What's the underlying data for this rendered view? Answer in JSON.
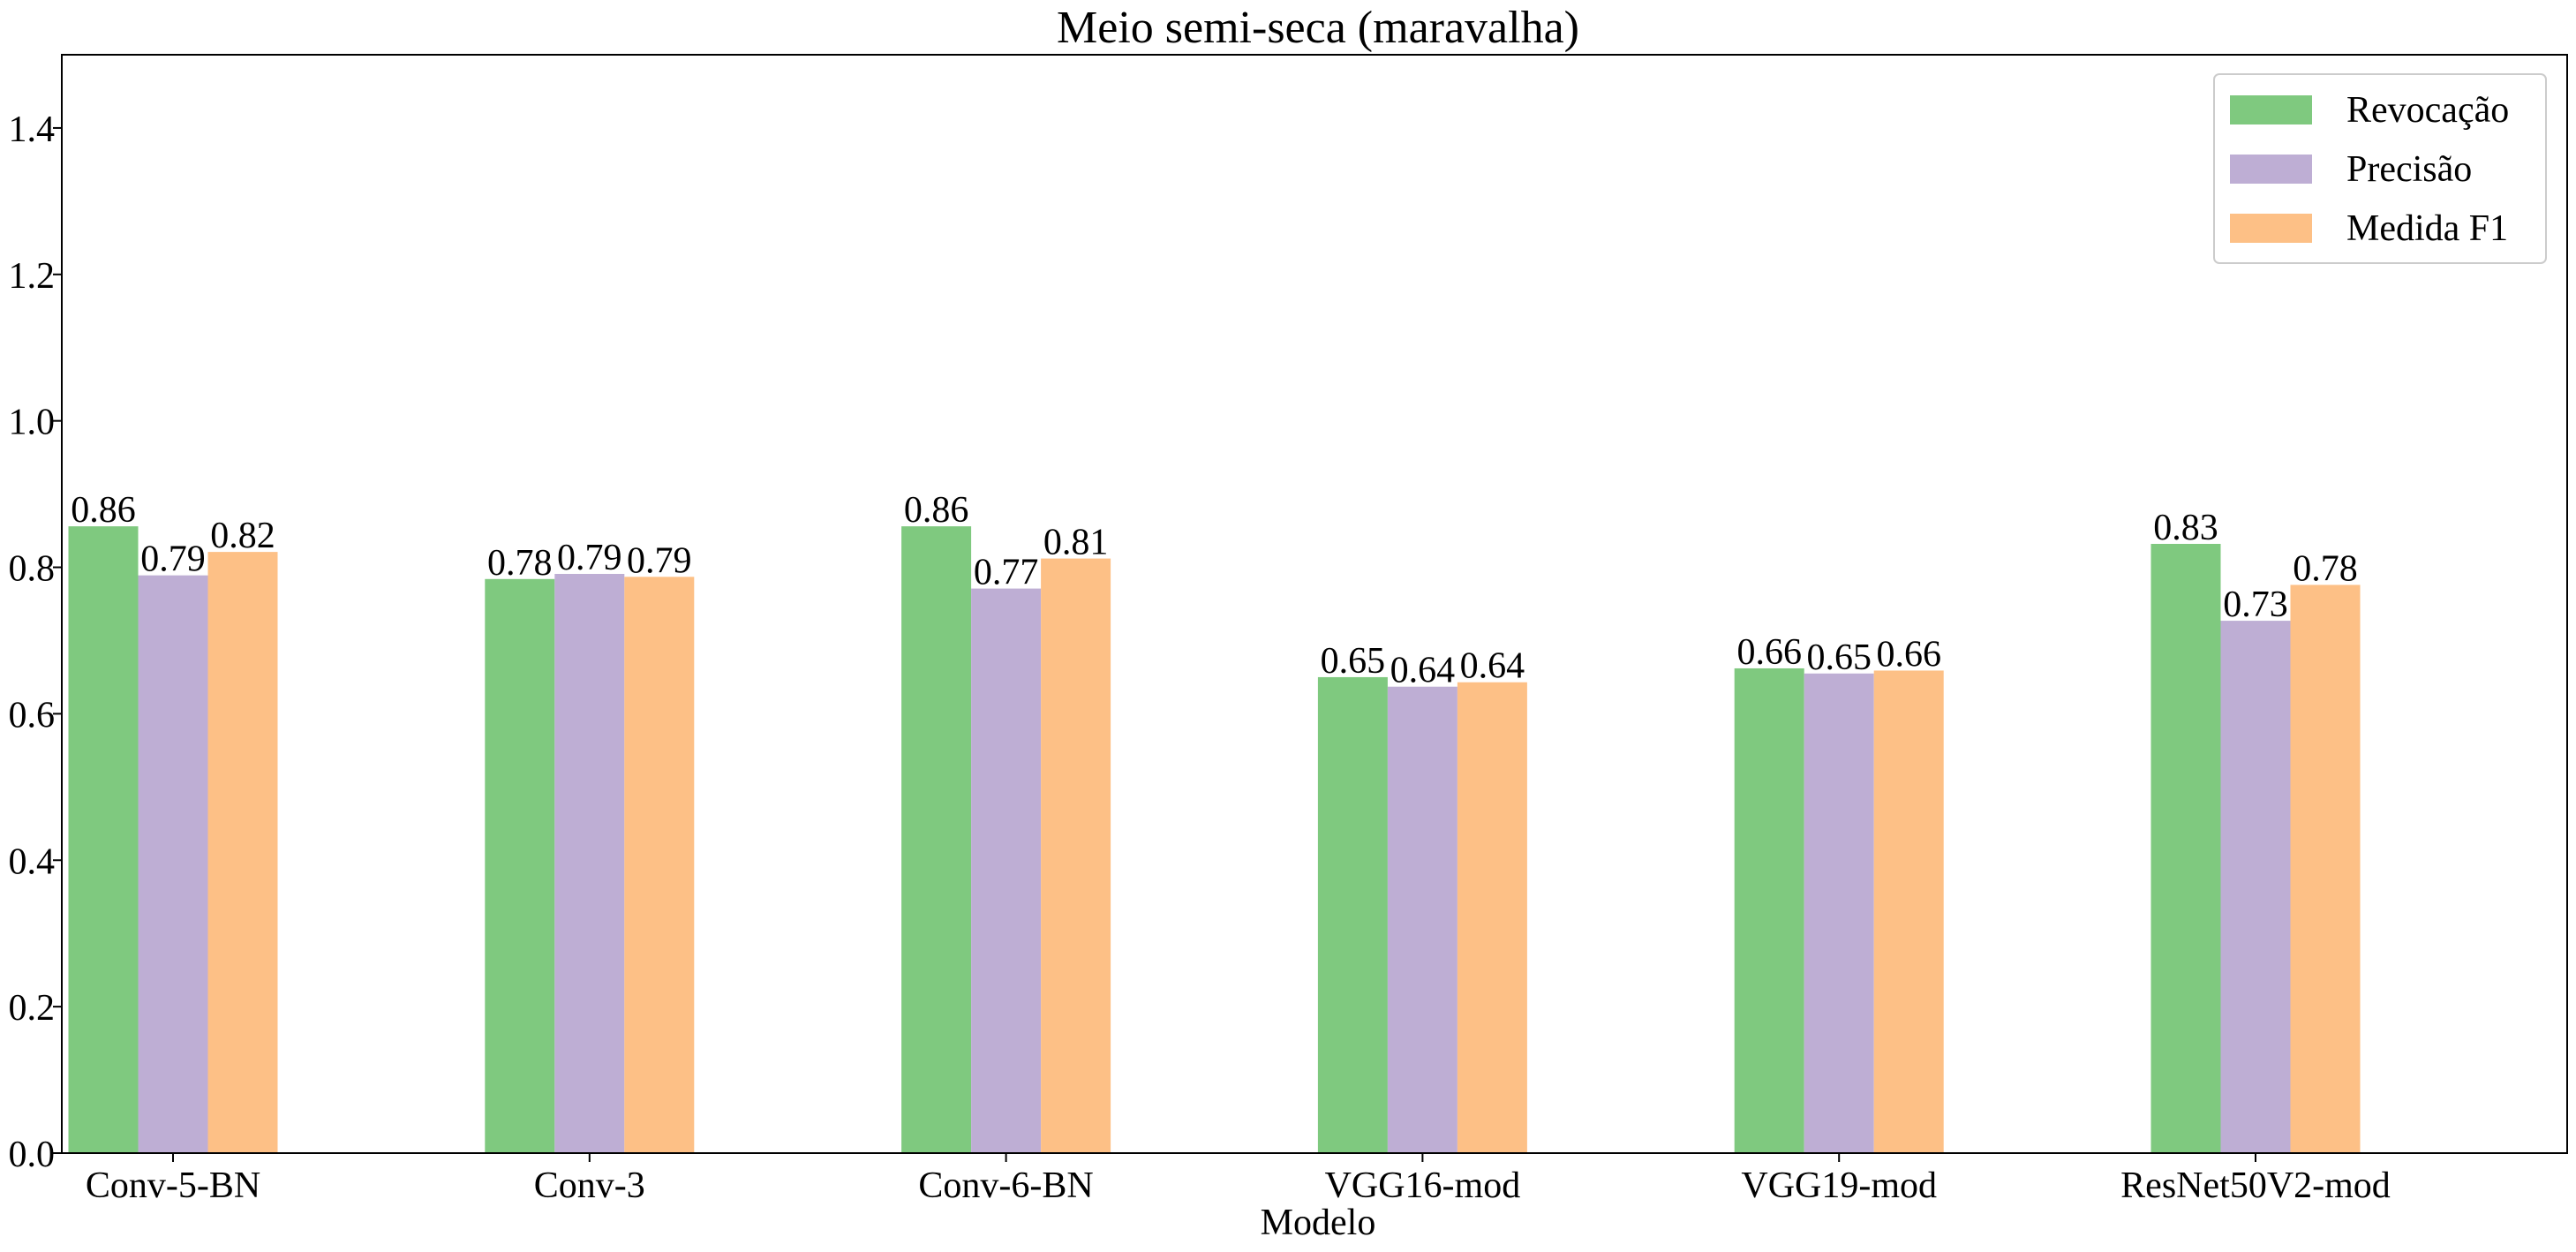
{
  "chart_data": {
    "type": "bar",
    "title": "Meio semi-seca (maravalha)",
    "xlabel": "Modelo",
    "ylabel": "",
    "ylim": [
      0,
      1.5
    ],
    "yticks": [
      "0.0",
      "0.2",
      "0.4",
      "0.6",
      "0.8",
      "1.0",
      "1.2",
      "1.4"
    ],
    "grid": false,
    "legend_position": "top-right",
    "categories": [
      "Conv-5-BN",
      "Conv-3",
      "Conv-6-BN",
      "VGG16-mod",
      "VGG19-mod",
      "ResNet50V2-mod"
    ],
    "series": [
      {
        "name": "Revocação",
        "color": "#7fc97f",
        "values": [
          0.856,
          0.784,
          0.856,
          0.65,
          0.662,
          0.832
        ],
        "labels": [
          "0.86",
          "0.78",
          "0.86",
          "0.65",
          "0.66",
          "0.83"
        ]
      },
      {
        "name": "Precisão",
        "color": "#beaed4",
        "values": [
          0.789,
          0.791,
          0.771,
          0.637,
          0.655,
          0.727
        ],
        "labels": [
          "0.79",
          "0.79",
          "0.77",
          "0.64",
          "0.65",
          "0.73"
        ]
      },
      {
        "name": "Medida F1",
        "color": "#fdc086",
        "values": [
          0.821,
          0.787,
          0.812,
          0.643,
          0.659,
          0.776
        ],
        "labels": [
          "0.82",
          "0.79",
          "0.81",
          "0.64",
          "0.66",
          "0.78"
        ]
      }
    ]
  }
}
